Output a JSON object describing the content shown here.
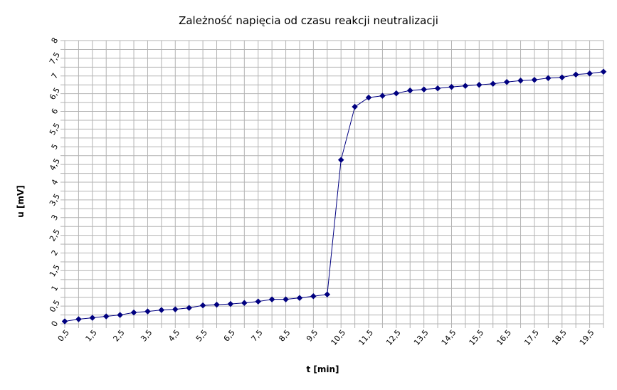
{
  "chart_data": {
    "type": "line",
    "title": "Zależność napięcia od czasu reakcji neutralizacji",
    "xlabel": "t [min]",
    "ylabel": "u [mV]",
    "xlim": [
      0.5,
      20
    ],
    "ylim": [
      0,
      8
    ],
    "grid": true,
    "x_tick_labels": [
      "0,5",
      "1,5",
      "2,5",
      "3,5",
      "4,5",
      "5,5",
      "6,5",
      "7,5",
      "8,5",
      "9,5",
      "10,5",
      "11,5",
      "12,5",
      "13,5",
      "14,5",
      "15,5",
      "16,5",
      "17,5",
      "18,5",
      "19,5"
    ],
    "y_tick_labels": [
      "0",
      "0,5",
      "1",
      "1,5",
      "2",
      "2,5",
      "3",
      "3,5",
      "4",
      "4,5",
      "5",
      "5,5",
      "6",
      "6,5",
      "7",
      "7,5",
      "8"
    ],
    "series": [
      {
        "color": "#000080",
        "marker": "diamond",
        "x": [
          0.5,
          1,
          1.5,
          2,
          2.5,
          3,
          3.5,
          4,
          4.5,
          5,
          5.5,
          6,
          6.5,
          7,
          7.5,
          8,
          8.5,
          9,
          9.5,
          10,
          10.5,
          11,
          11.5,
          12,
          12.5,
          13,
          13.5,
          14,
          14.5,
          15,
          15.5,
          16,
          16.5,
          17,
          17.5,
          18,
          18.5,
          19,
          19.5,
          20
        ],
        "y": [
          0.07,
          0.13,
          0.17,
          0.21,
          0.25,
          0.32,
          0.35,
          0.39,
          0.41,
          0.45,
          0.52,
          0.54,
          0.56,
          0.59,
          0.63,
          0.69,
          0.69,
          0.73,
          0.78,
          0.83,
          4.63,
          6.13,
          6.39,
          6.44,
          6.51,
          6.59,
          6.62,
          6.65,
          6.69,
          6.72,
          6.75,
          6.78,
          6.83,
          6.87,
          6.89,
          6.94,
          6.96,
          7.04,
          7.07,
          7.12
        ]
      }
    ]
  }
}
